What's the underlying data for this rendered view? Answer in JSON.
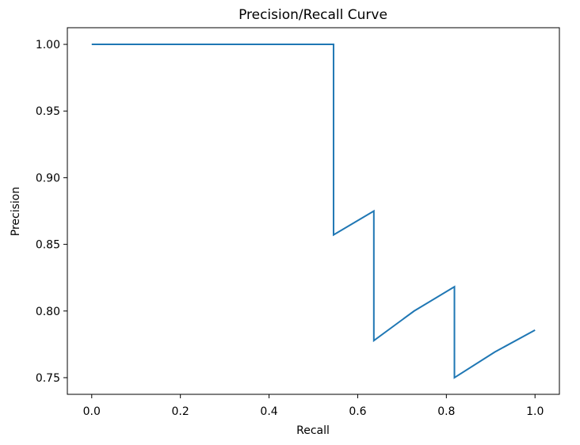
{
  "chart_data": {
    "type": "line",
    "title": "Precision/Recall Curve",
    "xlabel": "Recall",
    "ylabel": "Precision",
    "xlim": [
      -0.055,
      1.055
    ],
    "ylim": [
      0.7375,
      1.0125
    ],
    "grid": false,
    "legend": "none",
    "xticks": [
      0.0,
      0.2,
      0.4,
      0.6,
      0.8,
      1.0
    ],
    "xtick_labels": [
      "0.0",
      "0.2",
      "0.4",
      "0.6",
      "0.8",
      "1.0"
    ],
    "yticks": [
      0.75,
      0.8,
      0.85,
      0.9,
      0.95,
      1.0
    ],
    "ytick_labels": [
      "0.75",
      "0.80",
      "0.85",
      "0.90",
      "0.95",
      "1.00"
    ],
    "series": [
      {
        "color": "#1f77b4",
        "x": [
          0.0,
          0.0909,
          0.1818,
          0.2727,
          0.3636,
          0.4545,
          0.5455,
          0.5455,
          0.6364,
          0.6364,
          0.7273,
          0.8182,
          0.8182,
          0.9091,
          1.0
        ],
        "y": [
          1.0,
          1.0,
          1.0,
          1.0,
          1.0,
          1.0,
          1.0,
          0.8571,
          0.875,
          0.7778,
          0.8,
          0.8182,
          0.75,
          0.7692,
          0.7857
        ]
      }
    ]
  }
}
